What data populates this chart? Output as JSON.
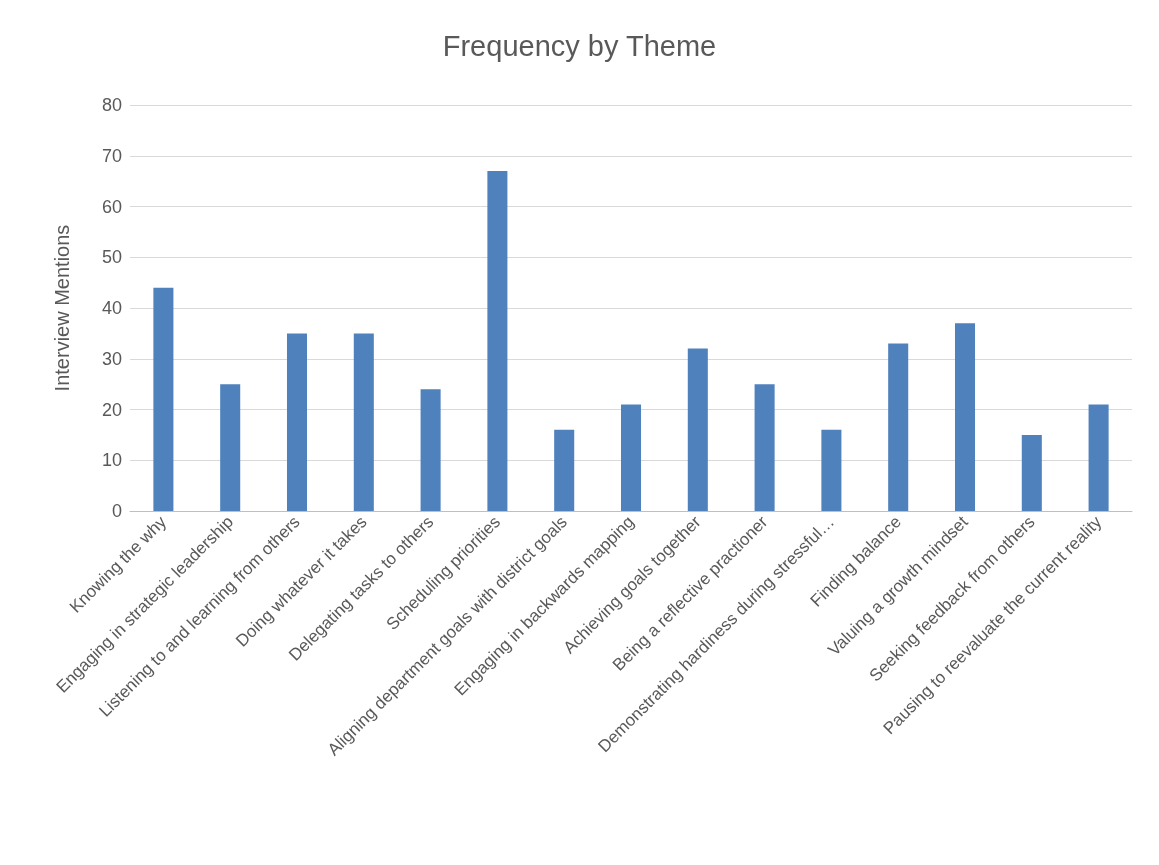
{
  "chart_data": {
    "type": "bar",
    "title": "Frequency by Theme",
    "ylabel": "Interview Mentions",
    "categories": [
      "Knowing the why",
      "Engaging in strategic leadership",
      "Listening to and learning from others",
      "Doing whatever it takes",
      "Delegating tasks to others",
      "Scheduling priorities",
      "Aligning department goals with district goals",
      "Engaging in backwards mapping",
      "Achieving goals together",
      "Being a reflective practioner",
      "Demonstrating hardiness during stressful…",
      "Finding balance",
      "Valuing a growth mindset",
      "Seeking feedback from others",
      "Pausing to reevaluate the current reality"
    ],
    "values": [
      44,
      25,
      35,
      35,
      24,
      67,
      16,
      21,
      32,
      25,
      16,
      33,
      37,
      15,
      21
    ],
    "color": "#4f81bd",
    "ylim": [
      0,
      80
    ],
    "yticks": [
      0,
      10,
      20,
      30,
      40,
      50,
      60,
      70,
      80
    ],
    "grid": "y"
  }
}
